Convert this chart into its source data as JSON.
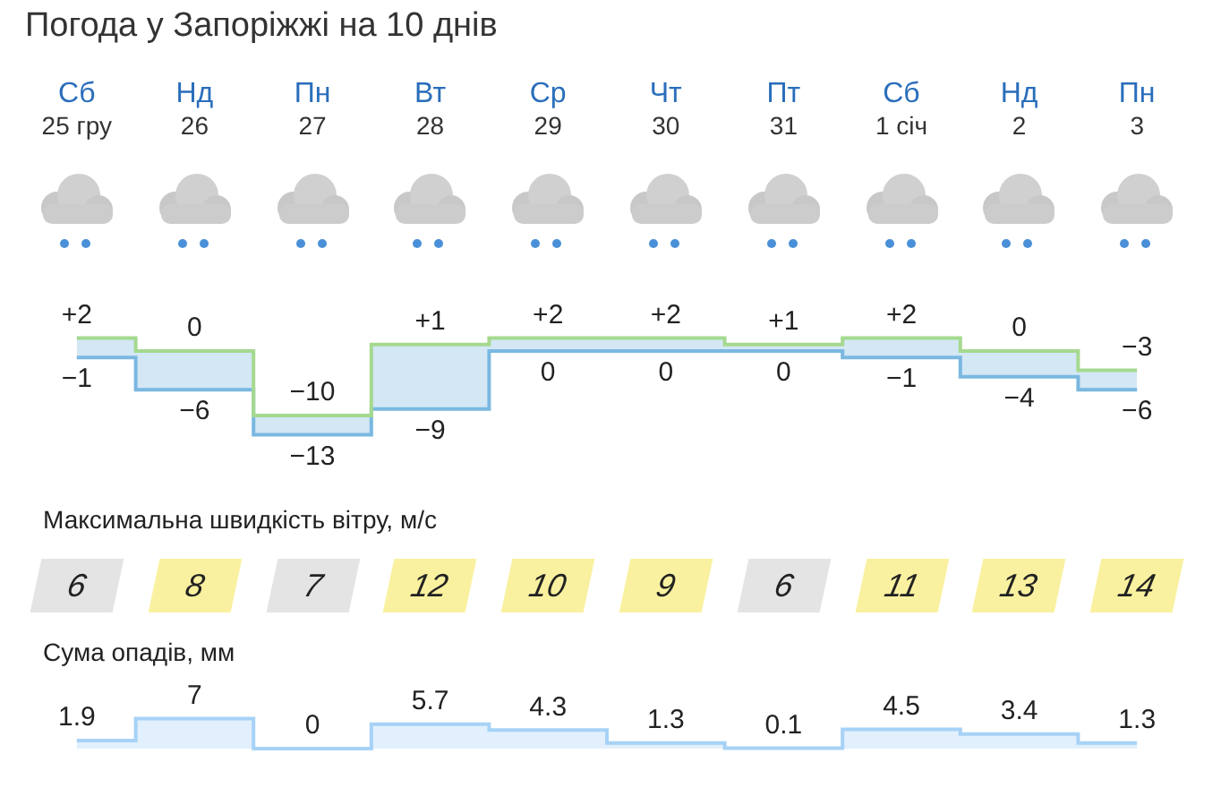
{
  "chart_data": [
    {
      "type": "step",
      "title": "Погода у Запоріжжі на 10 днів",
      "categories": [
        "Сб 25 гру",
        "Нд 26",
        "Пн 27",
        "Вт 28",
        "Ср 29",
        "Чт 30",
        "Пт 31",
        "Сб 1 січ",
        "Нд 2",
        "Пн 3"
      ],
      "series": [
        {
          "color": "#a5d98f",
          "values": [
            2,
            0,
            -10,
            1,
            2,
            2,
            1,
            2,
            0,
            -3
          ],
          "value_labels": [
            "+2",
            "0",
            "−10",
            "+1",
            "+2",
            "+2",
            "+1",
            "+2",
            "0",
            "−3"
          ]
        },
        {
          "color": "#7ab8e0",
          "values": [
            -1,
            -6,
            -13,
            -9,
            0,
            0,
            0,
            -1,
            -4,
            -6
          ],
          "value_labels": [
            "−1",
            "−6",
            "−13",
            "−9",
            "0",
            "0",
            "0",
            "−1",
            "−4",
            "−6"
          ]
        }
      ]
    },
    {
      "type": "other",
      "title": "Максимальна швидкість вітру, м/с",
      "values": [
        6,
        8,
        7,
        12,
        10,
        9,
        6,
        11,
        13,
        14
      ],
      "colors": [
        "#e4e4e4",
        "#faf1a0",
        "#e4e4e4",
        "#faf1a0",
        "#faf1a0",
        "#faf1a0",
        "#e4e4e4",
        "#faf1a0",
        "#faf1a0",
        "#faf1a0"
      ],
      "data_labels": true
    },
    {
      "type": "area",
      "title": "Сума опадів, мм",
      "categories": [
        null,
        null,
        null,
        null,
        null,
        null,
        null,
        null,
        null,
        null
      ],
      "values": [
        1.9,
        7,
        0,
        5.7,
        4.3,
        1.3,
        0.1,
        4.5,
        3.4,
        1.3
      ],
      "color": "#a6d2f6",
      "data_labels": true
    }
  ]
}
